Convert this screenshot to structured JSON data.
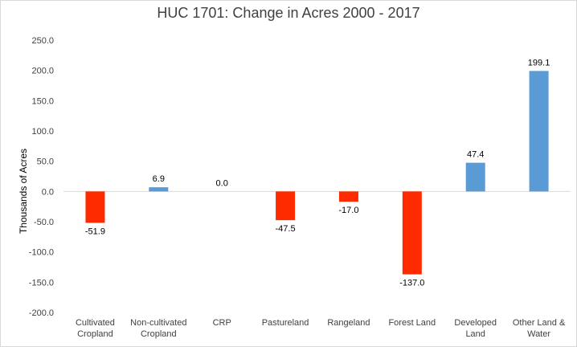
{
  "chart_data": {
    "type": "bar",
    "title": "HUC 1701: Change in Acres 2000 - 2017",
    "ylabel": "Thousands of Acres",
    "xlabel": "",
    "ylim": [
      -200,
      250
    ],
    "ytick_step": 50,
    "grid": false,
    "legend": "none",
    "categories": [
      [
        "Cultivated",
        "Cropland"
      ],
      [
        "Non-cultivated",
        "Cropland"
      ],
      [
        "CRP"
      ],
      [
        "Pastureland"
      ],
      [
        "Rangeland"
      ],
      [
        "Forest Land"
      ],
      [
        "Developed",
        "Land"
      ],
      [
        "Other Land &",
        "Water"
      ]
    ],
    "values": [
      -51.9,
      6.9,
      0.0,
      -47.5,
      -17.0,
      -137.0,
      47.4,
      199.1
    ],
    "colors": {
      "positive": "#5b9bd5",
      "negative": "#ff2b00"
    }
  }
}
